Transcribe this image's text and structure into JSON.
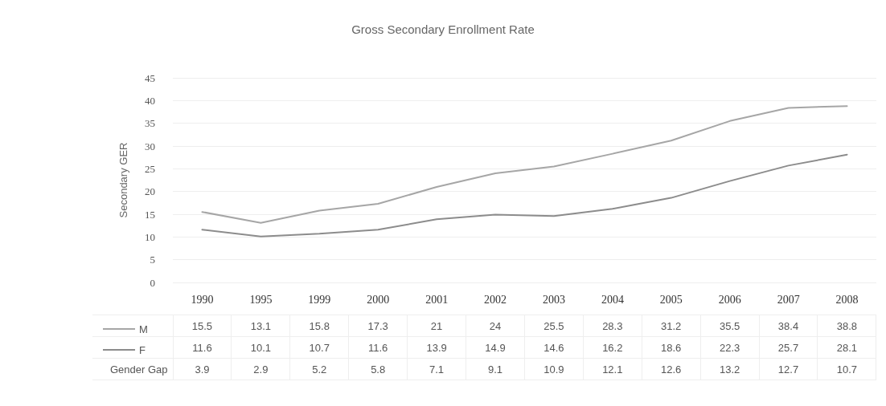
{
  "chart_data": {
    "type": "line",
    "title": "Gross Secondary Enrollment Rate",
    "ylabel": "Secondary GER",
    "categories": [
      "1990",
      "1995",
      "1999",
      "2000",
      "2001",
      "2002",
      "2003",
      "2004",
      "2005",
      "2006",
      "2007",
      "2008"
    ],
    "series": [
      {
        "name": "M",
        "color": "#a6a6a6",
        "values": [
          15.5,
          13.1,
          15.8,
          17.3,
          21,
          24,
          25.5,
          28.3,
          31.2,
          35.5,
          38.4,
          38.8
        ]
      },
      {
        "name": "F",
        "color": "#8c8c8c",
        "values": [
          11.6,
          10.1,
          10.7,
          11.6,
          13.9,
          14.9,
          14.6,
          16.2,
          18.6,
          22.3,
          25.7,
          28.1
        ]
      }
    ],
    "annotations": [
      "Gender Gap",
      "3.9",
      "2.9",
      "5.2",
      "5.8",
      "7.1",
      "9.1",
      "10.9",
      "12.1",
      "12.6",
      "13.2",
      "12.7",
      "10.7"
    ],
    "ylim": [
      0,
      45
    ],
    "yticks": [
      0,
      5,
      10,
      15,
      20,
      25,
      30,
      35,
      40,
      45
    ],
    "grid": "y",
    "legend": "bottom",
    "data_labels": true,
    "marker": "none",
    "line_style": "solid"
  }
}
